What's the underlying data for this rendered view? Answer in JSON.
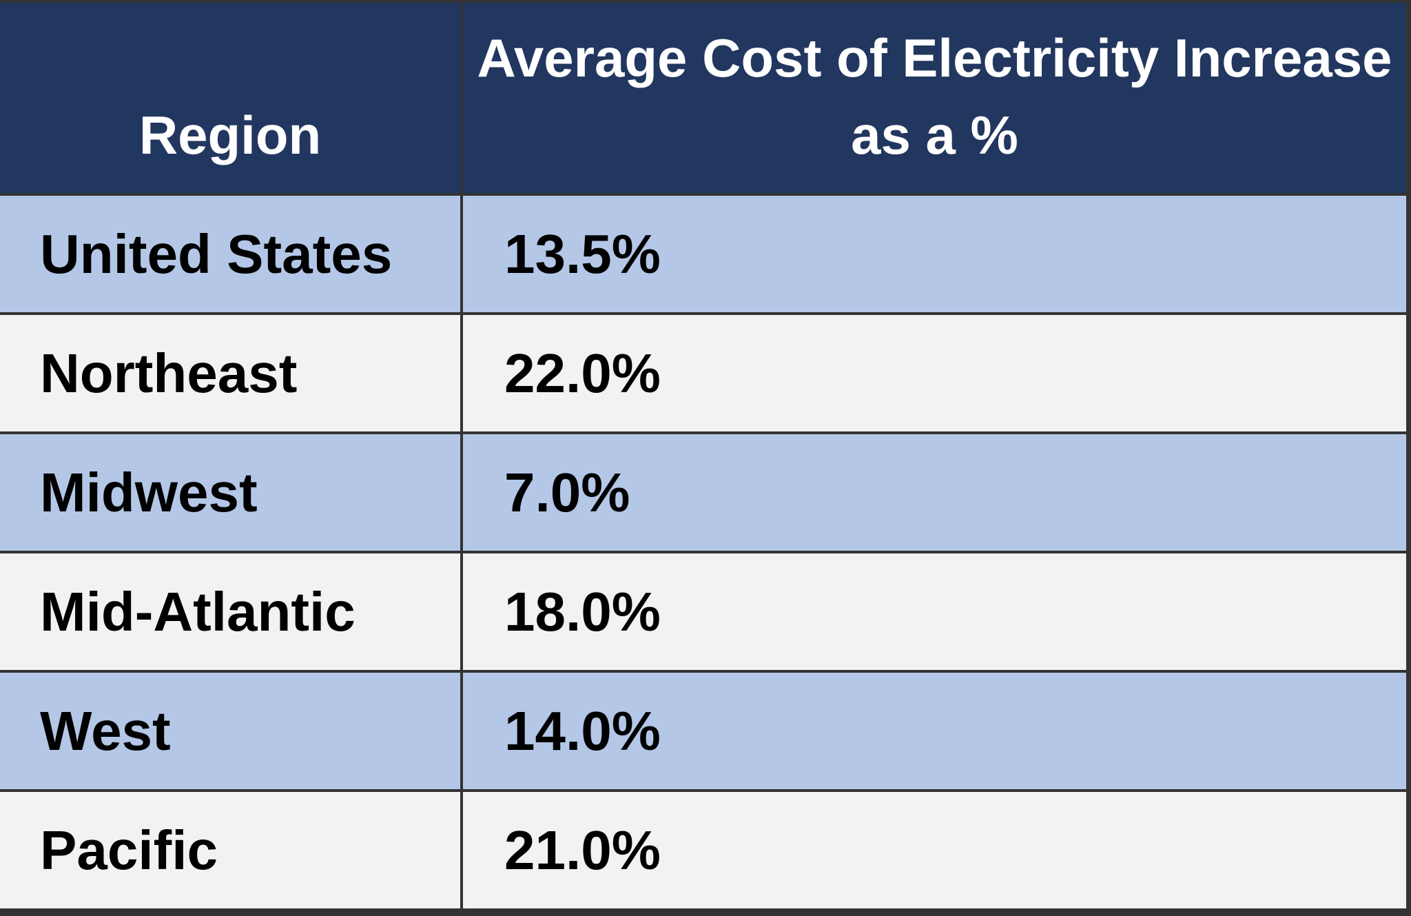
{
  "table": {
    "headers": [
      "Region",
      "Average Cost of Electricity Increase as a %"
    ],
    "rows": [
      {
        "region": "United States",
        "value": "13.5%"
      },
      {
        "region": "Northeast",
        "value": "22.0%"
      },
      {
        "region": "Midwest",
        "value": "7.0%"
      },
      {
        "region": "Mid-Atlantic",
        "value": "18.0%"
      },
      {
        "region": "West",
        "value": "14.0%"
      },
      {
        "region": "Pacific",
        "value": "21.0%"
      }
    ]
  },
  "colors": {
    "header_bg": "#22375f",
    "row_alt_blue": "#b4c7e7",
    "row_alt_gray": "#f2f2f2",
    "border": "#333333"
  }
}
